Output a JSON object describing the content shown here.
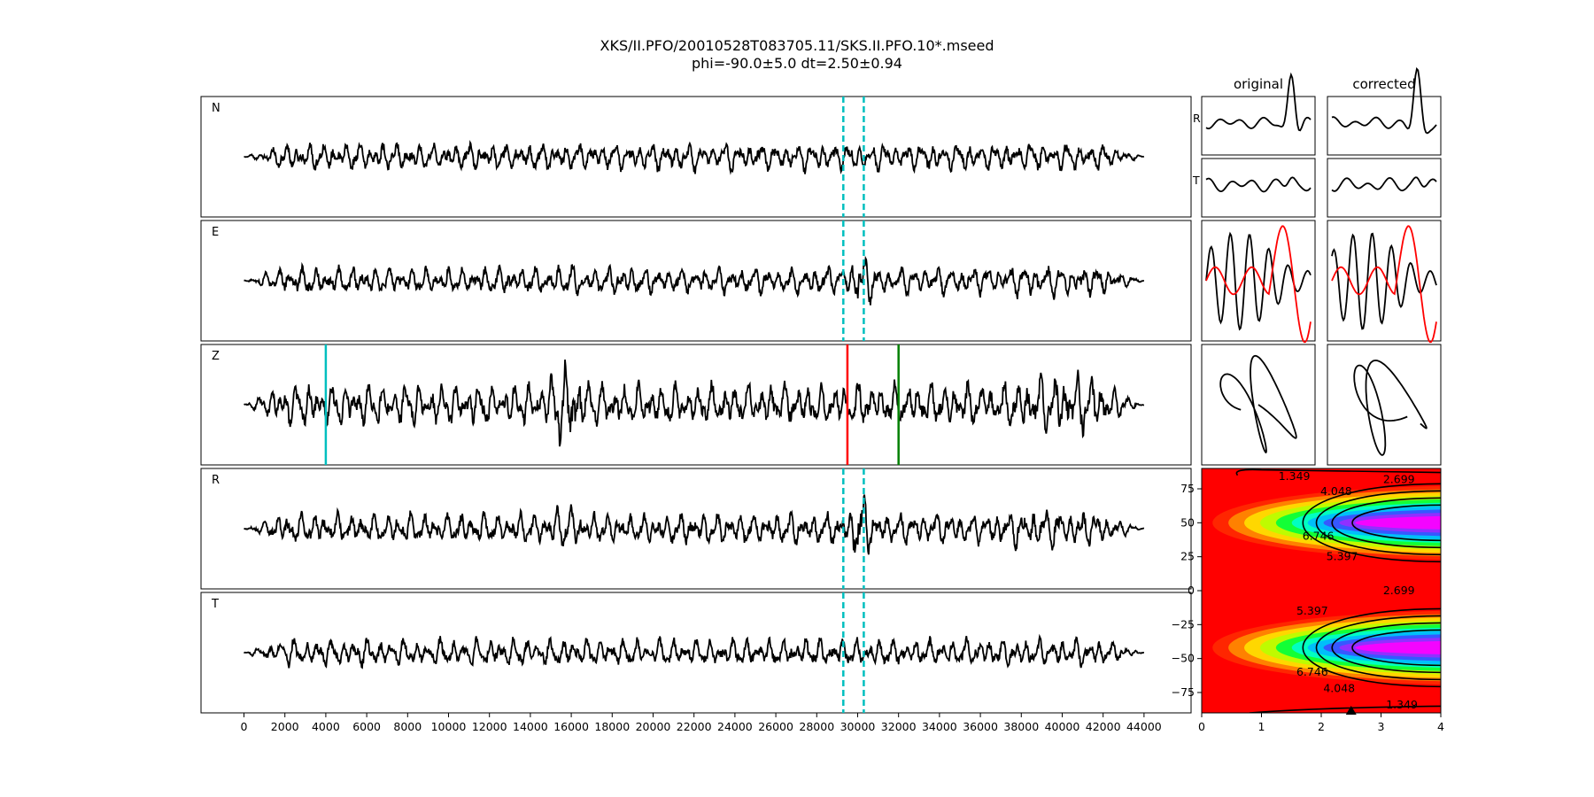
{
  "figure": {
    "title_line1": "XKS/II.PFO/20010528T083705.11/SKS.II.PFO.10*.mseed",
    "title_line2": "phi=-90.0±5.0 dt=2.50±0.94"
  },
  "chart_data": [
    {
      "type": "line",
      "name": "seismograms",
      "panels": [
        {
          "label": "N",
          "amplitude": 0.35,
          "markers": [
            {
              "x": 29300,
              "color": "#00bfbf",
              "style": "dashed"
            },
            {
              "x": 30300,
              "color": "#00bfbf",
              "style": "dashed"
            }
          ],
          "bursts": []
        },
        {
          "label": "E",
          "amplitude": 0.35,
          "markers": [
            {
              "x": 29300,
              "color": "#00bfbf",
              "style": "dashed"
            },
            {
              "x": 30300,
              "color": "#00bfbf",
              "style": "dashed"
            }
          ],
          "bursts": [
            {
              "x": 15800,
              "w": 1200,
              "a": 1.3
            },
            {
              "x": 30100,
              "w": 700,
              "a": 2.4
            },
            {
              "x": 39000,
              "w": 2500,
              "a": 1.2
            }
          ]
        },
        {
          "label": "Z",
          "amplitude": 0.55,
          "markers": [
            {
              "x": 4000,
              "color": "#00bfbf",
              "style": "solid"
            },
            {
              "x": 29500,
              "color": "#ff0000",
              "style": "solid"
            },
            {
              "x": 32000,
              "color": "#008000",
              "style": "solid"
            }
          ],
          "bursts": [
            {
              "x": 15800,
              "w": 1200,
              "a": 2.3
            },
            {
              "x": 40000,
              "w": 2500,
              "a": 1.6
            }
          ]
        },
        {
          "label": "R",
          "amplitude": 0.4,
          "markers": [
            {
              "x": 29300,
              "color": "#00bfbf",
              "style": "dashed"
            },
            {
              "x": 30300,
              "color": "#00bfbf",
              "style": "dashed"
            }
          ],
          "bursts": [
            {
              "x": 15800,
              "w": 1200,
              "a": 1.4
            },
            {
              "x": 30100,
              "w": 700,
              "a": 2.4
            },
            {
              "x": 39000,
              "w": 2500,
              "a": 1.3
            }
          ]
        },
        {
          "label": "T",
          "amplitude": 0.35,
          "markers": [
            {
              "x": 29300,
              "color": "#00bfbf",
              "style": "dashed"
            },
            {
              "x": 30300,
              "color": "#00bfbf",
              "style": "dashed"
            }
          ],
          "bursts": []
        }
      ],
      "xlim": [
        -2100,
        46300
      ],
      "signal_range": [
        0,
        44000
      ],
      "xticks": [
        0,
        2000,
        4000,
        6000,
        8000,
        10000,
        12000,
        14000,
        16000,
        18000,
        20000,
        22000,
        24000,
        26000,
        28000,
        30000,
        32000,
        34000,
        36000,
        38000,
        40000,
        42000,
        44000
      ],
      "xlabel": "",
      "ylabel": ""
    },
    {
      "type": "line",
      "name": "particle_panels",
      "column_titles": [
        "original",
        "corrected"
      ],
      "row_labels": [
        "R",
        "T"
      ]
    },
    {
      "type": "heatmap",
      "name": "error_surface",
      "x_range": [
        0,
        4
      ],
      "y_range": [
        -90,
        90
      ],
      "xticks": [
        "0",
        "1",
        "2",
        "3",
        "4"
      ],
      "yticks": [
        "75",
        "50",
        "25",
        "0",
        "−25",
        "−50",
        "−75"
      ],
      "ytick_values": [
        75,
        50,
        25,
        0,
        -25,
        -50,
        -75
      ],
      "contour_levels": [
        "1.349",
        "2.699",
        "4.048",
        "5.397",
        "6.746"
      ],
      "contour_label_positions": [
        {
          "text": "1.349",
          "x": 1.55,
          "y": 84
        },
        {
          "text": "2.699",
          "x": 3.3,
          "y": 82
        },
        {
          "text": "4.048",
          "x": 2.25,
          "y": 73
        },
        {
          "text": "6.746",
          "x": 1.95,
          "y": 40
        },
        {
          "text": "5.397",
          "x": 2.35,
          "y": 25
        },
        {
          "text": "2.699",
          "x": 3.3,
          "y": 0
        },
        {
          "text": "5.397",
          "x": 1.85,
          "y": -15
        },
        {
          "text": "6.746",
          "x": 1.85,
          "y": -60
        },
        {
          "text": "4.048",
          "x": 2.3,
          "y": -72
        },
        {
          "text": "1.349",
          "x": 3.35,
          "y": -84
        }
      ],
      "best_estimate": {
        "dt": 2.5,
        "phi": -90
      },
      "colors": {
        "low": "#ff0000",
        "mid": "#ffff00",
        "high": "#00ffff",
        "peak": "#ff00ff"
      }
    }
  ]
}
